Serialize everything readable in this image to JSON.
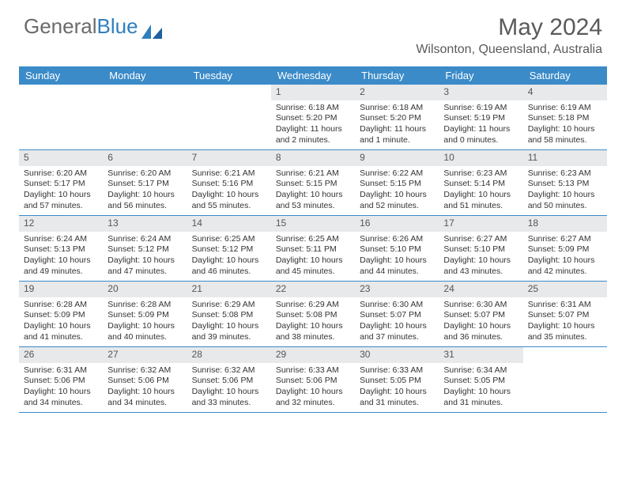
{
  "brand": {
    "part1": "General",
    "part2": "Blue"
  },
  "title": "May 2024",
  "location": "Wilsonton, Queensland, Australia",
  "colors": {
    "header_bar": "#3b8bc9",
    "daynum_bg": "#e8e9ea",
    "text": "#333333",
    "title_text": "#5a5a5a",
    "logo_gray": "#6b6b6b",
    "logo_blue": "#2f7fbf",
    "row_border": "#3b8bc9"
  },
  "day_names": [
    "Sunday",
    "Monday",
    "Tuesday",
    "Wednesday",
    "Thursday",
    "Friday",
    "Saturday"
  ],
  "weeks": [
    [
      {
        "n": "",
        "lines": []
      },
      {
        "n": "",
        "lines": []
      },
      {
        "n": "",
        "lines": []
      },
      {
        "n": "1",
        "lines": [
          "Sunrise: 6:18 AM",
          "Sunset: 5:20 PM",
          "Daylight: 11 hours",
          "and 2 minutes."
        ]
      },
      {
        "n": "2",
        "lines": [
          "Sunrise: 6:18 AM",
          "Sunset: 5:20 PM",
          "Daylight: 11 hours",
          "and 1 minute."
        ]
      },
      {
        "n": "3",
        "lines": [
          "Sunrise: 6:19 AM",
          "Sunset: 5:19 PM",
          "Daylight: 11 hours",
          "and 0 minutes."
        ]
      },
      {
        "n": "4",
        "lines": [
          "Sunrise: 6:19 AM",
          "Sunset: 5:18 PM",
          "Daylight: 10 hours",
          "and 58 minutes."
        ]
      }
    ],
    [
      {
        "n": "5",
        "lines": [
          "Sunrise: 6:20 AM",
          "Sunset: 5:17 PM",
          "Daylight: 10 hours",
          "and 57 minutes."
        ]
      },
      {
        "n": "6",
        "lines": [
          "Sunrise: 6:20 AM",
          "Sunset: 5:17 PM",
          "Daylight: 10 hours",
          "and 56 minutes."
        ]
      },
      {
        "n": "7",
        "lines": [
          "Sunrise: 6:21 AM",
          "Sunset: 5:16 PM",
          "Daylight: 10 hours",
          "and 55 minutes."
        ]
      },
      {
        "n": "8",
        "lines": [
          "Sunrise: 6:21 AM",
          "Sunset: 5:15 PM",
          "Daylight: 10 hours",
          "and 53 minutes."
        ]
      },
      {
        "n": "9",
        "lines": [
          "Sunrise: 6:22 AM",
          "Sunset: 5:15 PM",
          "Daylight: 10 hours",
          "and 52 minutes."
        ]
      },
      {
        "n": "10",
        "lines": [
          "Sunrise: 6:23 AM",
          "Sunset: 5:14 PM",
          "Daylight: 10 hours",
          "and 51 minutes."
        ]
      },
      {
        "n": "11",
        "lines": [
          "Sunrise: 6:23 AM",
          "Sunset: 5:13 PM",
          "Daylight: 10 hours",
          "and 50 minutes."
        ]
      }
    ],
    [
      {
        "n": "12",
        "lines": [
          "Sunrise: 6:24 AM",
          "Sunset: 5:13 PM",
          "Daylight: 10 hours",
          "and 49 minutes."
        ]
      },
      {
        "n": "13",
        "lines": [
          "Sunrise: 6:24 AM",
          "Sunset: 5:12 PM",
          "Daylight: 10 hours",
          "and 47 minutes."
        ]
      },
      {
        "n": "14",
        "lines": [
          "Sunrise: 6:25 AM",
          "Sunset: 5:12 PM",
          "Daylight: 10 hours",
          "and 46 minutes."
        ]
      },
      {
        "n": "15",
        "lines": [
          "Sunrise: 6:25 AM",
          "Sunset: 5:11 PM",
          "Daylight: 10 hours",
          "and 45 minutes."
        ]
      },
      {
        "n": "16",
        "lines": [
          "Sunrise: 6:26 AM",
          "Sunset: 5:10 PM",
          "Daylight: 10 hours",
          "and 44 minutes."
        ]
      },
      {
        "n": "17",
        "lines": [
          "Sunrise: 6:27 AM",
          "Sunset: 5:10 PM",
          "Daylight: 10 hours",
          "and 43 minutes."
        ]
      },
      {
        "n": "18",
        "lines": [
          "Sunrise: 6:27 AM",
          "Sunset: 5:09 PM",
          "Daylight: 10 hours",
          "and 42 minutes."
        ]
      }
    ],
    [
      {
        "n": "19",
        "lines": [
          "Sunrise: 6:28 AM",
          "Sunset: 5:09 PM",
          "Daylight: 10 hours",
          "and 41 minutes."
        ]
      },
      {
        "n": "20",
        "lines": [
          "Sunrise: 6:28 AM",
          "Sunset: 5:09 PM",
          "Daylight: 10 hours",
          "and 40 minutes."
        ]
      },
      {
        "n": "21",
        "lines": [
          "Sunrise: 6:29 AM",
          "Sunset: 5:08 PM",
          "Daylight: 10 hours",
          "and 39 minutes."
        ]
      },
      {
        "n": "22",
        "lines": [
          "Sunrise: 6:29 AM",
          "Sunset: 5:08 PM",
          "Daylight: 10 hours",
          "and 38 minutes."
        ]
      },
      {
        "n": "23",
        "lines": [
          "Sunrise: 6:30 AM",
          "Sunset: 5:07 PM",
          "Daylight: 10 hours",
          "and 37 minutes."
        ]
      },
      {
        "n": "24",
        "lines": [
          "Sunrise: 6:30 AM",
          "Sunset: 5:07 PM",
          "Daylight: 10 hours",
          "and 36 minutes."
        ]
      },
      {
        "n": "25",
        "lines": [
          "Sunrise: 6:31 AM",
          "Sunset: 5:07 PM",
          "Daylight: 10 hours",
          "and 35 minutes."
        ]
      }
    ],
    [
      {
        "n": "26",
        "lines": [
          "Sunrise: 6:31 AM",
          "Sunset: 5:06 PM",
          "Daylight: 10 hours",
          "and 34 minutes."
        ]
      },
      {
        "n": "27",
        "lines": [
          "Sunrise: 6:32 AM",
          "Sunset: 5:06 PM",
          "Daylight: 10 hours",
          "and 34 minutes."
        ]
      },
      {
        "n": "28",
        "lines": [
          "Sunrise: 6:32 AM",
          "Sunset: 5:06 PM",
          "Daylight: 10 hours",
          "and 33 minutes."
        ]
      },
      {
        "n": "29",
        "lines": [
          "Sunrise: 6:33 AM",
          "Sunset: 5:06 PM",
          "Daylight: 10 hours",
          "and 32 minutes."
        ]
      },
      {
        "n": "30",
        "lines": [
          "Sunrise: 6:33 AM",
          "Sunset: 5:05 PM",
          "Daylight: 10 hours",
          "and 31 minutes."
        ]
      },
      {
        "n": "31",
        "lines": [
          "Sunrise: 6:34 AM",
          "Sunset: 5:05 PM",
          "Daylight: 10 hours",
          "and 31 minutes."
        ]
      },
      {
        "n": "",
        "lines": []
      }
    ]
  ]
}
